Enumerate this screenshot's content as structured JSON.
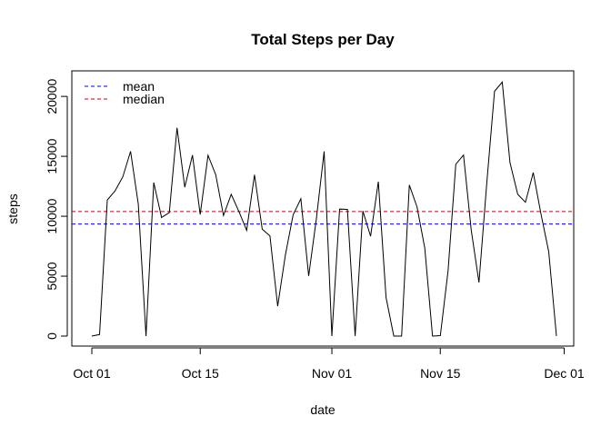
{
  "chart_data": {
    "type": "line",
    "title": "Total Steps per Day",
    "xlabel": "date",
    "ylabel": "steps",
    "x_start": "2012-10-01",
    "x_ticks": [
      {
        "date": "2012-10-01",
        "label": "Oct 01"
      },
      {
        "date": "2012-10-15",
        "label": "Oct 15"
      },
      {
        "date": "2012-11-01",
        "label": "Nov 01"
      },
      {
        "date": "2012-11-15",
        "label": "Nov 15"
      },
      {
        "date": "2012-12-01",
        "label": "Dec 01"
      }
    ],
    "xlim": [
      "2012-09-29",
      "2012-12-01"
    ],
    "y_ticks": [
      0,
      5000,
      10000,
      15000,
      20000
    ],
    "ylim": [
      0,
      21300
    ],
    "grid": false,
    "legend_position": "top-left",
    "series": [
      {
        "color": "#000000",
        "values": [
          0,
          126,
          11352,
          12116,
          13294,
          15420,
          11015,
          0,
          12811,
          9900,
          10304,
          17382,
          12426,
          15098,
          10139,
          15084,
          13452,
          10056,
          11829,
          10395,
          8821,
          13460,
          8918,
          8355,
          2492,
          6778,
          10119,
          11458,
          5018,
          9819,
          15414,
          0,
          10600,
          10571,
          0,
          10439,
          8334,
          12883,
          3219,
          0,
          0,
          12608,
          10765,
          7336,
          0,
          41,
          5441,
          14339,
          15110,
          8841,
          4472,
          12787,
          20427,
          21194,
          14478,
          11834,
          11162,
          13646,
          10183,
          7047,
          0
        ]
      }
    ],
    "reference_lines": [
      {
        "name": "mean",
        "value": 9354,
        "color": "#0000ff",
        "style": "dashed"
      },
      {
        "name": "median",
        "value": 10395,
        "color": "#cc0000",
        "style": "dashed"
      }
    ]
  }
}
